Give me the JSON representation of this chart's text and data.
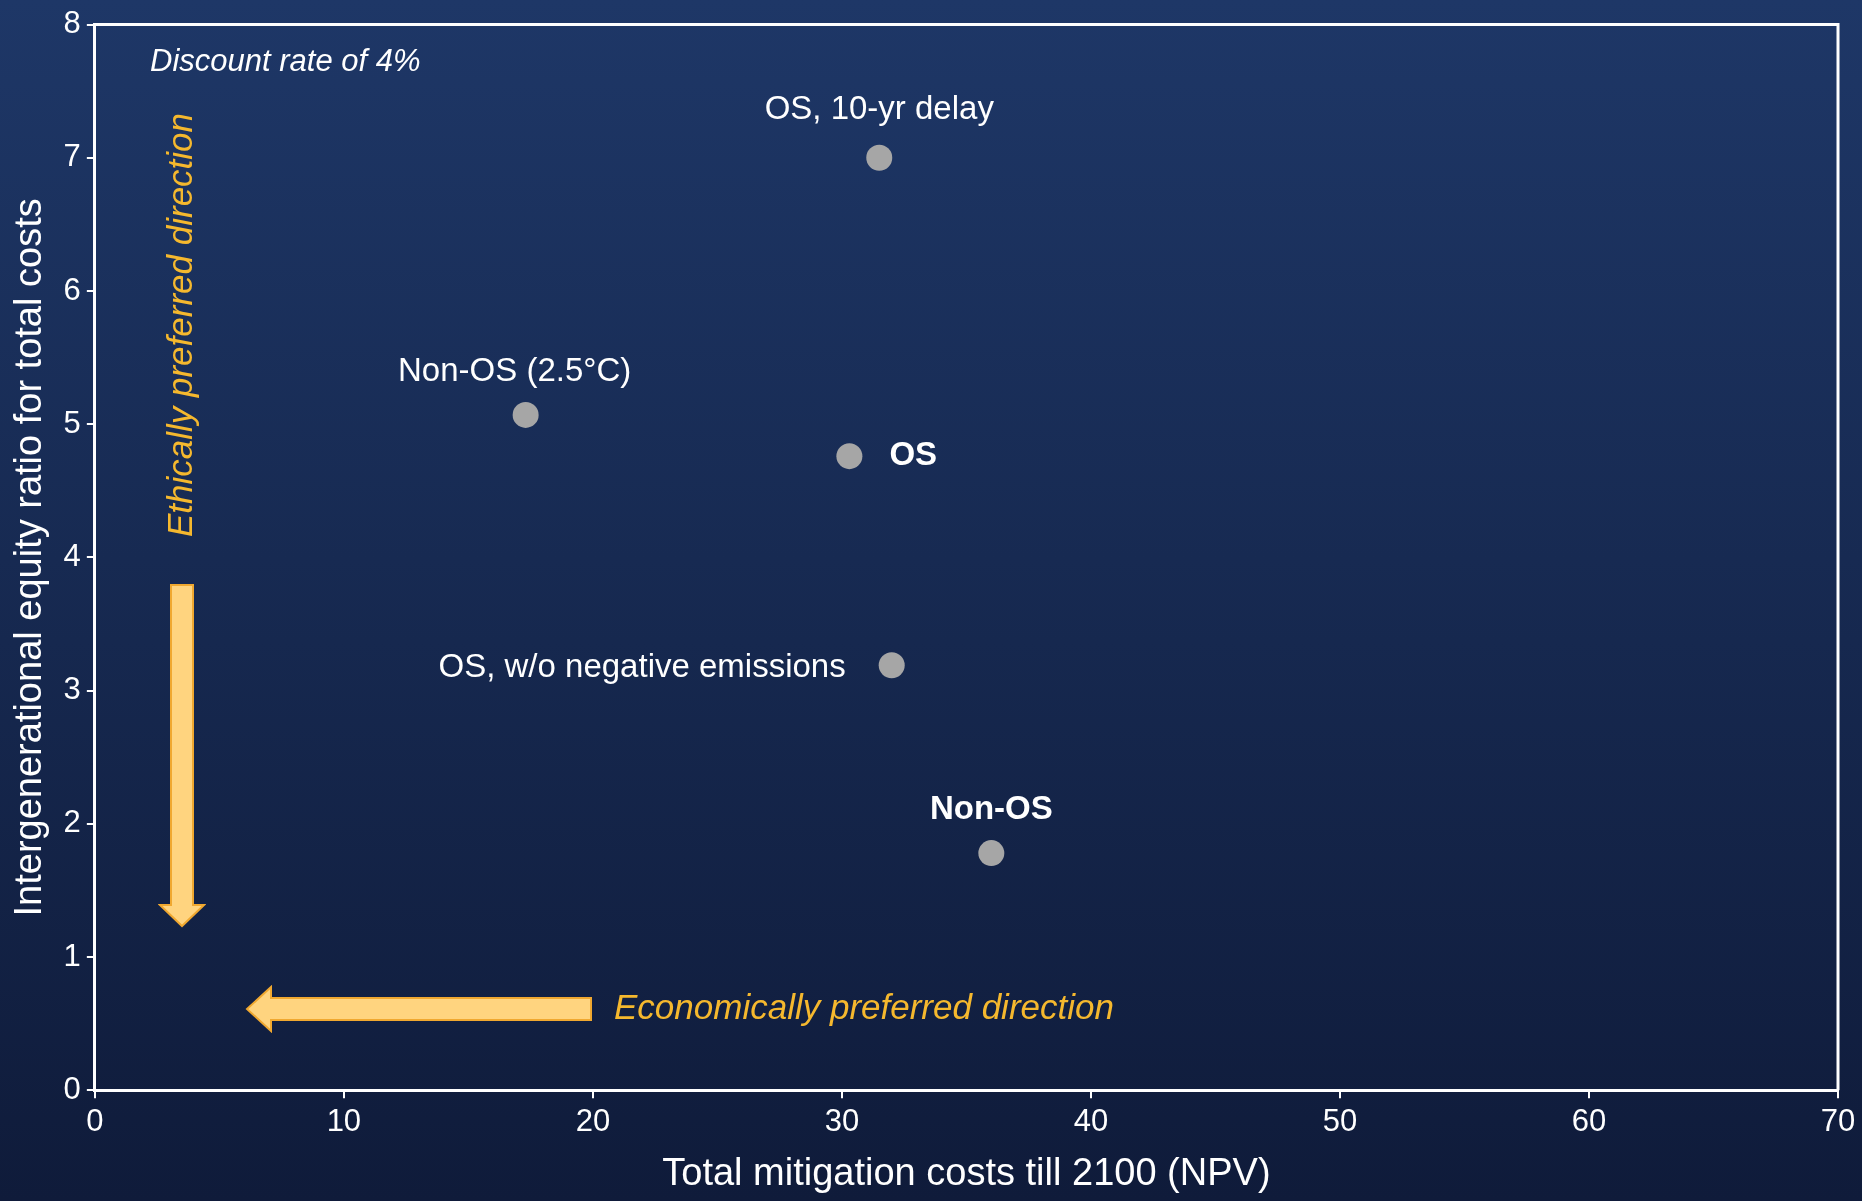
{
  "chart_data": {
    "type": "scatter",
    "xlabel": "Total mitigation costs till 2100 (NPV)",
    "ylabel": "Intergenerational equity ratio for total costs",
    "x": [
      31.5,
      17.3,
      30.3,
      32.0,
      36.0
    ],
    "series": [
      {
        "color": "#a6a6a6",
        "values": [
          7.0,
          5.07,
          4.76,
          3.19,
          1.78
        ]
      }
    ],
    "xlim": [
      0,
      70
    ],
    "xticks": [
      0,
      10,
      20,
      30,
      40,
      50,
      60,
      70
    ],
    "ylim": [
      0,
      8
    ],
    "yticks": [
      0,
      1,
      2,
      3,
      4,
      5,
      6,
      7,
      8
    ],
    "grid": false,
    "legend": false,
    "marker": "circle",
    "annotations": [
      {
        "text": "OS, 10-yr delay",
        "x": 31.5,
        "y": 7.0
      },
      {
        "text": "Non-OS (2.5°C)",
        "x": 17.3,
        "y": 5.07
      },
      {
        "text": "OS",
        "x": 30.3,
        "y": 4.76
      },
      {
        "text": "OS, w/o negative emissions",
        "x": 32.0,
        "y": 3.19
      },
      {
        "text": "Non-OS",
        "x": 36.0,
        "y": 1.78
      },
      "Discount rate of 4%",
      "Ethically preferred direction",
      "Economically preferred direction"
    ]
  }
}
